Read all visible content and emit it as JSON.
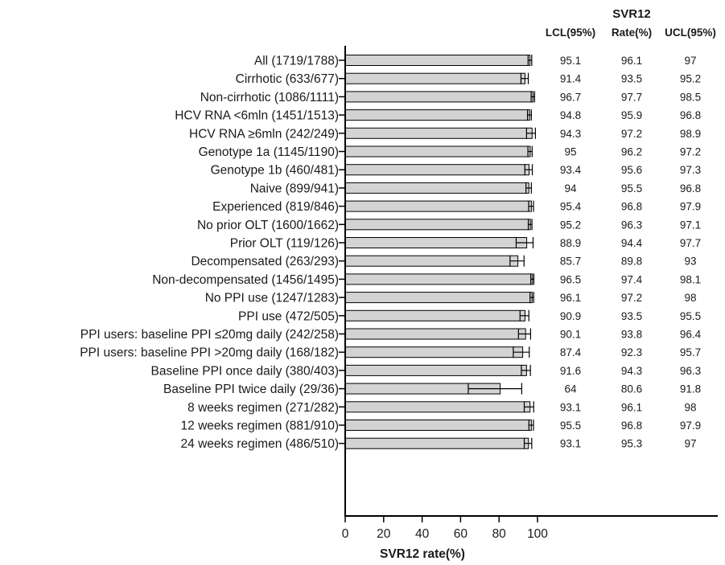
{
  "chart_data": {
    "type": "bar",
    "orientation": "horizontal",
    "xlabel": "SVR12 rate(%)",
    "xlim": [
      0,
      100
    ],
    "xticks": [
      0,
      20,
      40,
      60,
      80,
      100
    ],
    "bar_color": "#d3d3d3",
    "table_title": "SVR12",
    "table_columns": [
      "LCL(95%)",
      "Rate(%)",
      "UCL(95%)"
    ],
    "categories": [
      "All (1719/1788)",
      "Cirrhotic (633/677)",
      "Non-cirrhotic (1086/1111)",
      "HCV RNA <6mln (1451/1513)",
      "HCV RNA ≥6mln (242/249)",
      "Genotype 1a (1145/1190)",
      "Genotype 1b (460/481)",
      "Naive (899/941)",
      "Experienced (819/846)",
      "No prior OLT (1600/1662)",
      "Prior OLT (119/126)",
      "Decompensated (263/293)",
      "Non-decompensated (1456/1495)",
      "No PPI use (1247/1283)",
      "PPI use (472/505)",
      "PPI users: baseline PPI ≤20mg daily (242/258)",
      "PPI users: baseline PPI >20mg daily (168/182)",
      "Baseline PPI once daily (380/403)",
      "Baseline PPI twice daily (29/36)",
      "8 weeks regimen (271/282)",
      "12 weeks regimen (881/910)",
      "24 weeks regimen (486/510)"
    ],
    "lcl": [
      "95.1",
      "91.4",
      "96.7",
      "94.8",
      "94.3",
      "95",
      "93.4",
      "94",
      "95.4",
      "95.2",
      "88.9",
      "85.7",
      "96.5",
      "96.1",
      "90.9",
      "90.1",
      "87.4",
      "91.6",
      "64",
      "93.1",
      "95.5",
      "93.1"
    ],
    "rate": [
      "96.1",
      "93.5",
      "97.7",
      "95.9",
      "97.2",
      "96.2",
      "95.6",
      "95.5",
      "96.8",
      "96.3",
      "94.4",
      "89.8",
      "97.4",
      "97.2",
      "93.5",
      "93.8",
      "92.3",
      "94.3",
      "80.6",
      "96.1",
      "96.8",
      "95.3"
    ],
    "ucl": [
      "97",
      "95.2",
      "98.5",
      "96.8",
      "98.9",
      "97.2",
      "97.3",
      "96.8",
      "97.9",
      "97.1",
      "97.7",
      "93",
      "98.1",
      "98",
      "95.5",
      "96.4",
      "95.7",
      "96.3",
      "91.8",
      "98",
      "97.9",
      "97"
    ]
  }
}
